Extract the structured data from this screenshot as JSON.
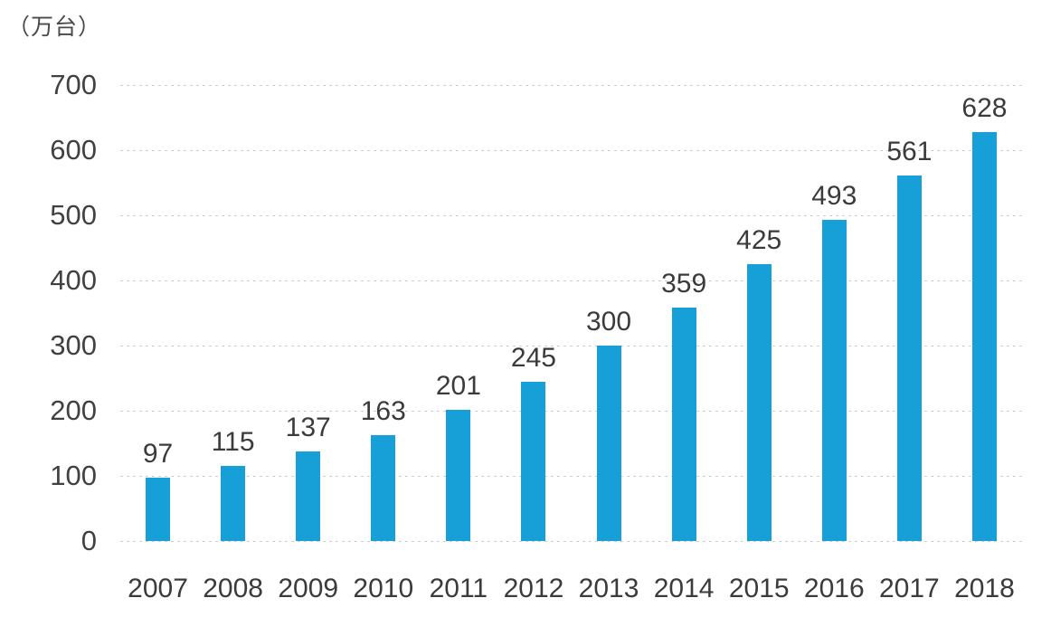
{
  "chart_data": {
    "type": "bar",
    "title": "",
    "unit_label": "（万台）",
    "categories": [
      "2007",
      "2008",
      "2009",
      "2010",
      "2011",
      "2012",
      "2013",
      "2014",
      "2015",
      "2016",
      "2017",
      "2018"
    ],
    "values": [
      97,
      115,
      137,
      163,
      201,
      245,
      300,
      359,
      425,
      493,
      561,
      628
    ],
    "xlabel": "",
    "ylabel": "万台",
    "ylim": [
      0,
      700
    ],
    "yticks": [
      0,
      100,
      200,
      300,
      400,
      500,
      600,
      700
    ],
    "grid": "horizontal-dotted",
    "legend_position": "none",
    "data_labels": "above-bars",
    "bar_color": "#17a0d7",
    "label_color": "#3b3b3b",
    "axis_text_color": "#414141",
    "gridline_color": "#cdcdcd",
    "background_color": "#ffffff"
  }
}
